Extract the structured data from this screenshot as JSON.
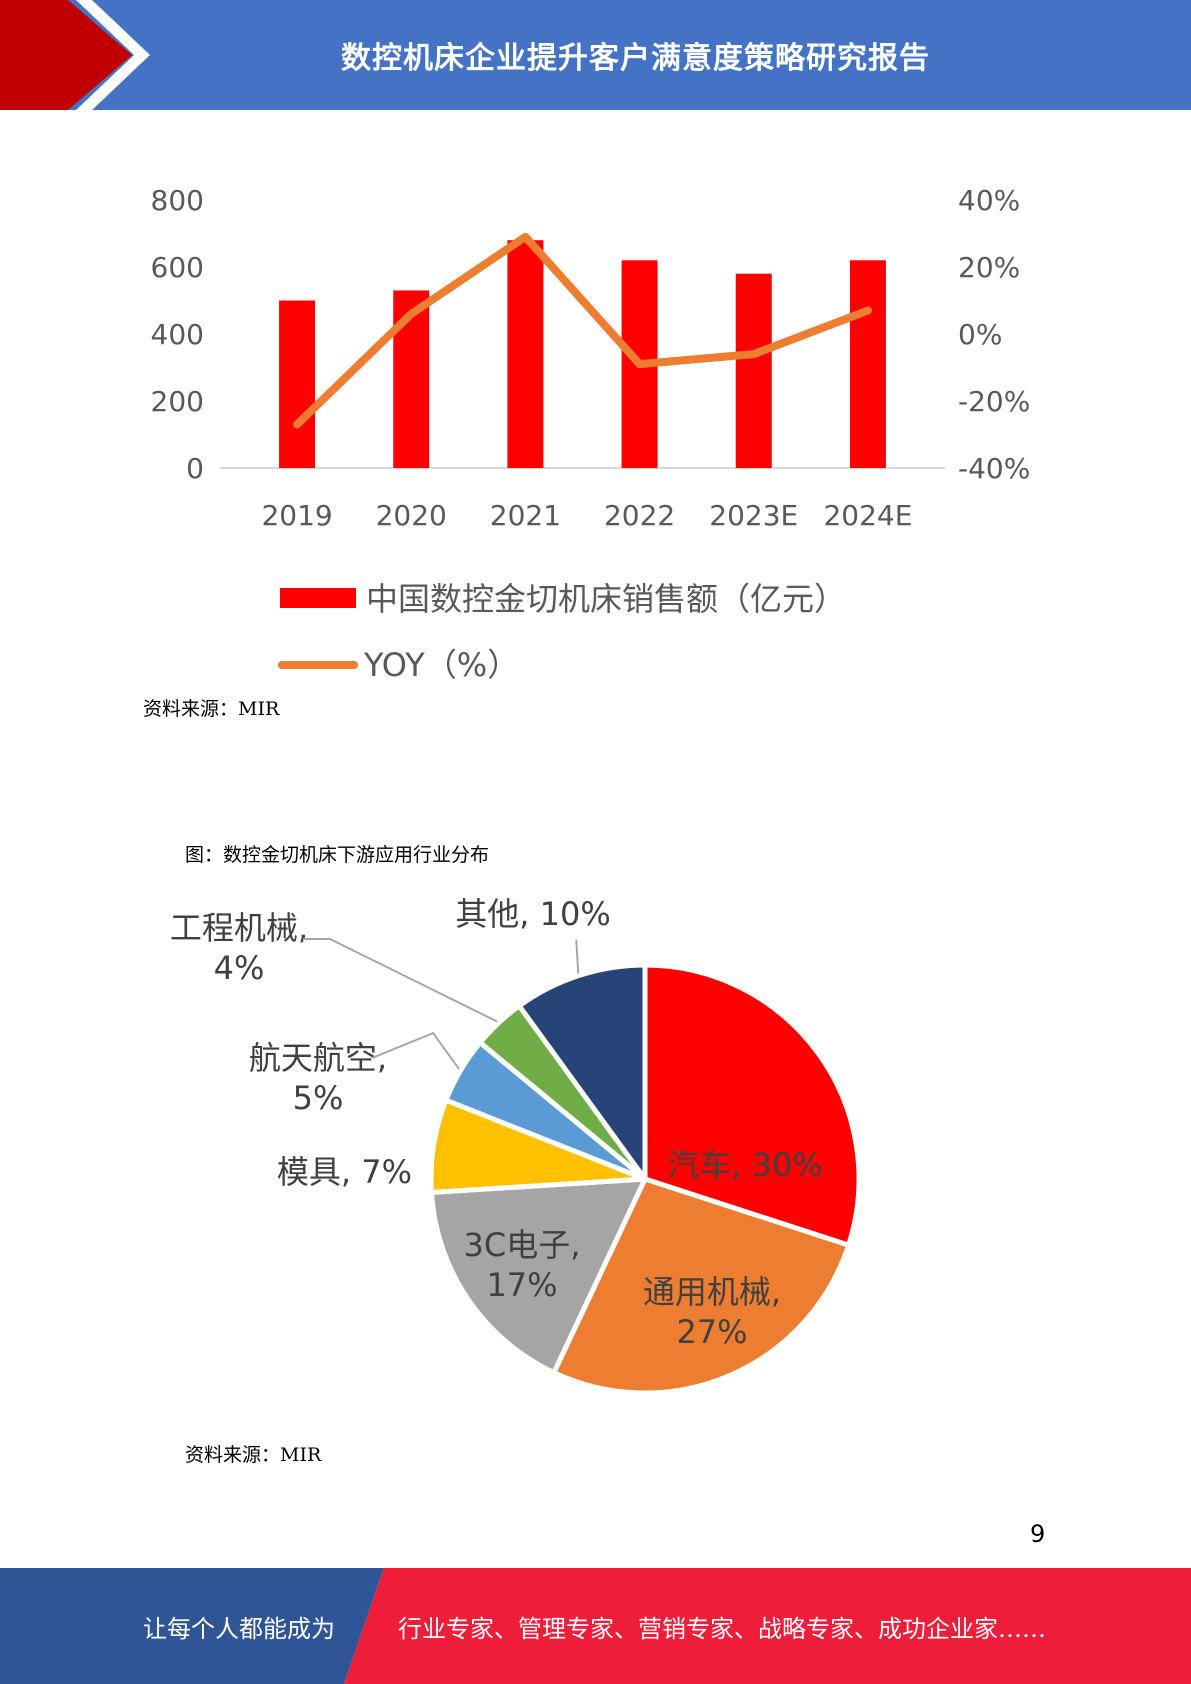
{
  "header": {
    "title": "数控机床企业提升客户满意度策略研究报告",
    "bg_color": "#4472C4",
    "accent_color": "#C00000"
  },
  "chart_data": [
    {
      "type": "bar",
      "categories": [
        "2019",
        "2020",
        "2021",
        "2022",
        "2023E",
        "2024E"
      ],
      "series": [
        {
          "name": "中国数控金切机床销售额（亿元）",
          "type": "bar",
          "axis": "left",
          "color": "#FF0000",
          "values": [
            500,
            530,
            680,
            620,
            580,
            620
          ]
        },
        {
          "name": "YOY（%）",
          "type": "line",
          "axis": "right",
          "color": "#ED7D31",
          "values": [
            -27,
            6,
            29,
            -9,
            -6,
            7
          ]
        }
      ],
      "ylim": [
        0,
        800
      ],
      "yticks": [
        "0",
        "200",
        "400",
        "600",
        "800"
      ],
      "ylim_right": [
        -40,
        40
      ],
      "yticks_right": [
        "-40%",
        "-20%",
        "0%",
        "20%",
        "40%"
      ],
      "legend_position": "bottom",
      "grid": false
    },
    {
      "type": "pie",
      "title": "图：数控金切机床下游应用行业分布",
      "slices": [
        {
          "label": "汽车, 30%",
          "value": 30,
          "color": "#FF0000"
        },
        {
          "label": "通用机械, 27%",
          "value": 27,
          "color": "#ED7D31"
        },
        {
          "label": "3C电子, 17%",
          "value": 17,
          "color": "#A5A5A5"
        },
        {
          "label": "模具, 7%",
          "value": 7,
          "color": "#FFC000"
        },
        {
          "label": "航天航空, 5%",
          "value": 5,
          "color": "#5B9BD5"
        },
        {
          "label": "工程机械, 4%",
          "value": 4,
          "color": "#70AD47"
        },
        {
          "label": "其他, 10%",
          "value": 10,
          "color": "#264478"
        }
      ]
    }
  ],
  "sources": {
    "source1": "资料来源：MIR",
    "source2": "资料来源：MIR"
  },
  "page_number": "9",
  "footer": {
    "left_text": "让每个人都能成为",
    "right_text": "行业专家、管理专家、营销专家、战略专家、成功企业家……",
    "left_color": "#2F5597",
    "right_color": "#EE1D3A"
  }
}
